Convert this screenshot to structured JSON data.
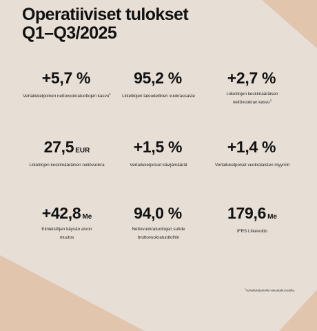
{
  "title": {
    "line1": "Operatiiviset tulokset",
    "line2": "Q1–Q3/2025"
  },
  "kpis": [
    {
      "value": "+5,7 %",
      "unit": "",
      "label": "Vertailukelpoinen nettovuokratuottojen kasvu",
      "sup": "1"
    },
    {
      "value": "95,2 %",
      "unit": "",
      "label": "Liiketilojen taloudellinen vuokrausaste",
      "sup": ""
    },
    {
      "value": "+2,7 %",
      "unit": "",
      "label": "Liiketilojen keskimääräisen neliövuokran kasvu",
      "sup": "1"
    },
    {
      "value": "27,5",
      "unit": "EUR",
      "label": "Liiketilojen keskimääräinen neliövuokra",
      "sup": ""
    },
    {
      "value": "+1,5 %",
      "unit": "",
      "label": "Vertailukelpoiset kävijämäärät",
      "sup": ""
    },
    {
      "value": "+1,4 %",
      "unit": "",
      "label": "Vertailukelpoiset vuokralaisten myynnit",
      "sup": ""
    },
    {
      "value": "+42,8",
      "unit": "Me",
      "label": "Kiinteistöjen käyvän arvon muutos",
      "sup": ""
    },
    {
      "value": "94,0 %",
      "unit": "",
      "label": "Nettovuokratuottojen suhde bruttovuokratuottoihin",
      "sup": ""
    },
    {
      "value": "179,6",
      "unit": "Me",
      "label": "IFRS Liikevoitto",
      "sup": ""
    }
  ],
  "footnote": {
    "sup": "1",
    "text": "vertailukelpoisilla valuuttakursseilla."
  },
  "colors": {
    "background": "#e7dfd6",
    "accent_shape": "#e2c5ad",
    "text": "#111111"
  }
}
